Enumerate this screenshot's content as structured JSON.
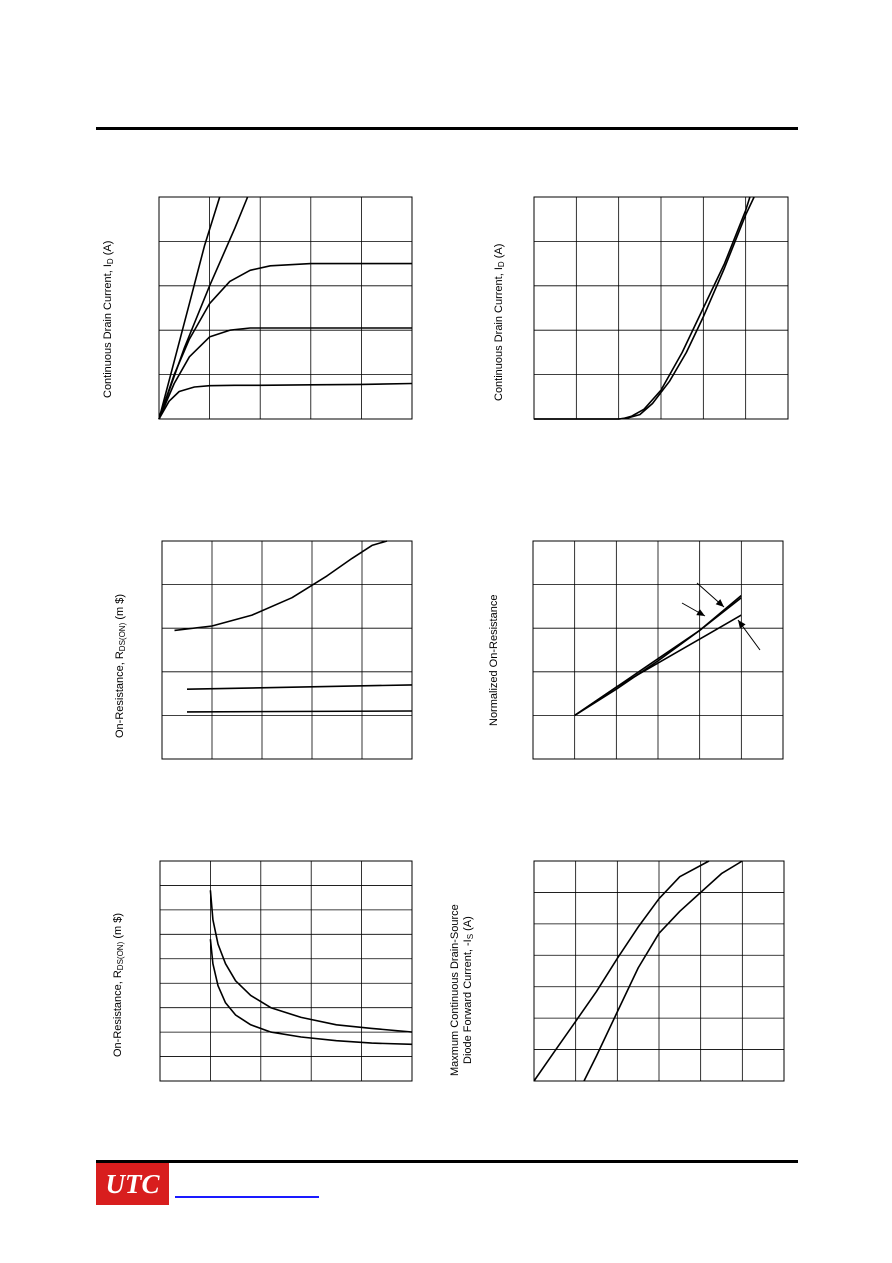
{
  "footer": {
    "logo_text": "UTC"
  },
  "charts": [
    {
      "ylabel": "Continuous Drain Current, I",
      "ylabel_sub": "D",
      "ylabel_tail": " (A)",
      "grid": "on"
    },
    {
      "ylabel": "Continuous Drain Current, I",
      "ylabel_sub": "D",
      "ylabel_tail": " (A)",
      "grid": "on"
    },
    {
      "ylabel": "On-Resistance, R",
      "ylabel_sub": "DS(ON)",
      "ylabel_tail": " (m $)",
      "grid": "on"
    },
    {
      "ylabel": "Normalized On-Resistance",
      "ylabel_sub": "",
      "ylabel_tail": "",
      "grid": "on"
    },
    {
      "ylabel": "On-Resistance, R",
      "ylabel_sub": "DS(ON)",
      "ylabel_tail": " (m $)",
      "grid": "on"
    },
    {
      "ylabel": "Maxmum Continuous Drain-Source",
      "ylabel2": "Diode Forward Current, -I",
      "ylabel_sub": "S",
      "ylabel_tail": " (A)",
      "grid": "on"
    }
  ],
  "chart_data": [
    {
      "type": "line",
      "xlim": [
        0,
        5
      ],
      "ylim": [
        0,
        5
      ],
      "series": [
        {
          "x": [
            0,
            0.3,
            0.6,
            0.9,
            1.2
          ],
          "y": [
            0,
            1.3,
            2.6,
            3.9,
            5
          ]
        },
        {
          "x": [
            0,
            0.5,
            1,
            1.5,
            1.75
          ],
          "y": [
            0,
            1.6,
            3.0,
            4.3,
            5
          ]
        },
        {
          "x": [
            0,
            0.3,
            0.6,
            1,
            1.4,
            1.8,
            2.2,
            3,
            4,
            5
          ],
          "y": [
            0,
            1.0,
            1.8,
            2.6,
            3.1,
            3.35,
            3.45,
            3.5,
            3.5,
            3.5
          ]
        },
        {
          "x": [
            0,
            0.3,
            0.6,
            1,
            1.4,
            1.8,
            2.2,
            3,
            4,
            5
          ],
          "y": [
            0,
            0.8,
            1.4,
            1.85,
            2.0,
            2.05,
            2.05,
            2.05,
            2.05,
            2.05
          ]
        },
        {
          "x": [
            0,
            0.2,
            0.4,
            0.7,
            1,
            1.5,
            2,
            3,
            4,
            5
          ],
          "y": [
            0,
            0.4,
            0.62,
            0.72,
            0.75,
            0.76,
            0.76,
            0.77,
            0.78,
            0.8
          ]
        }
      ]
    },
    {
      "type": "line",
      "xlim": [
        0,
        6
      ],
      "ylim": [
        0,
        5
      ],
      "series": [
        {
          "x": [
            0,
            1,
            2,
            2.1,
            2.3,
            2.6,
            3,
            3.5,
            4,
            4.5,
            5,
            5.1
          ],
          "y": [
            0,
            0,
            0,
            0.01,
            0.06,
            0.22,
            0.65,
            1.5,
            2.5,
            3.5,
            4.7,
            5
          ]
        },
        {
          "x": [
            0,
            1,
            2,
            2.2,
            2.5,
            2.8,
            3.2,
            3.6,
            4,
            4.5,
            5,
            5.2
          ],
          "y": [
            0,
            0,
            0,
            0.02,
            0.1,
            0.35,
            0.85,
            1.5,
            2.3,
            3.4,
            4.6,
            5
          ]
        }
      ]
    },
    {
      "type": "line",
      "xlim": [
        0,
        5
      ],
      "ylim": [
        0,
        5
      ],
      "series": [
        {
          "x": [
            0.25,
            1,
            1.8,
            2.6,
            3.3,
            3.8,
            4.2,
            4.5
          ],
          "y": [
            2.95,
            3.05,
            3.3,
            3.7,
            4.2,
            4.6,
            4.9,
            5
          ]
        },
        {
          "x": [
            0.5,
            5
          ],
          "y": [
            1.6,
            1.7
          ]
        },
        {
          "x": [
            0.5,
            5
          ],
          "y": [
            1.08,
            1.1
          ]
        }
      ]
    },
    {
      "type": "line",
      "xlim": [
        0,
        6
      ],
      "ylim": [
        0,
        5
      ],
      "series": [
        {
          "x": [
            1,
            2,
            3,
            4,
            5
          ],
          "y": [
            1,
            1.65,
            2.3,
            2.95,
            3.7
          ]
        },
        {
          "x": [
            1,
            2,
            3,
            4,
            5
          ],
          "y": [
            1,
            1.6,
            2.25,
            2.95,
            3.75
          ]
        },
        {
          "x": [
            1,
            2,
            3,
            4,
            5
          ],
          "y": [
            1,
            1.65,
            2.2,
            2.75,
            3.3
          ]
        }
      ]
    },
    {
      "type": "line",
      "xlim": [
        0,
        5
      ],
      "ylim": [
        0,
        9
      ],
      "series": [
        {
          "x": [
            1,
            1.05,
            1.15,
            1.3,
            1.5,
            1.8,
            2.2,
            2.8,
            3.5,
            4.2,
            5
          ],
          "y": [
            7.8,
            6.6,
            5.6,
            4.8,
            4.1,
            3.5,
            3.0,
            2.6,
            2.3,
            2.15,
            2.0
          ]
        },
        {
          "x": [
            1,
            1.05,
            1.15,
            1.3,
            1.5,
            1.8,
            2.2,
            2.8,
            3.5,
            4.2,
            5
          ],
          "y": [
            5.8,
            4.8,
            3.9,
            3.2,
            2.7,
            2.3,
            2.0,
            1.8,
            1.65,
            1.55,
            1.5
          ]
        }
      ]
    },
    {
      "type": "line",
      "xlim": [
        0,
        6
      ],
      "ylim": [
        0,
        7
      ],
      "series": [
        {
          "x": [
            0,
            0.5,
            1,
            1.5,
            2,
            2.5,
            3,
            3.5,
            4.2
          ],
          "y": [
            0,
            0.95,
            1.9,
            2.85,
            3.9,
            4.9,
            5.8,
            6.5,
            7
          ]
        },
        {
          "x": [
            1.2,
            1.5,
            2,
            2.5,
            3,
            3.5,
            4,
            4.5,
            5
          ],
          "y": [
            0,
            0.8,
            2.2,
            3.6,
            4.7,
            5.4,
            6.0,
            6.6,
            7
          ]
        }
      ]
    }
  ]
}
